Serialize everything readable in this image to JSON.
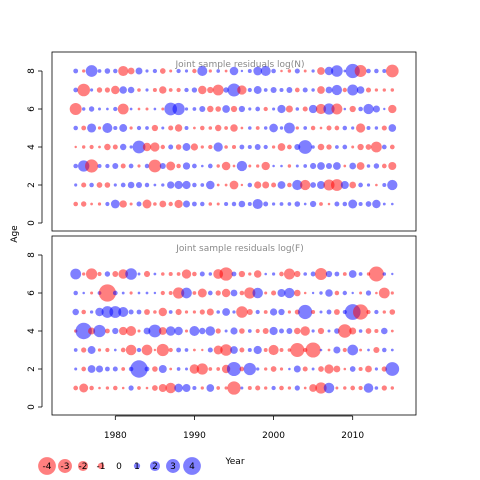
{
  "chart_data": {
    "type": "scatter",
    "subtype": "bubble",
    "colors": {
      "positive": "#0000ff",
      "negative": "#ff0000",
      "alpha": 0.5
    },
    "panels": [
      {
        "title": "Joint sample residuals log(N)",
        "ylim": [
          0,
          8
        ],
        "yticks": [
          "0",
          "2",
          "4",
          "6",
          "8"
        ],
        "ages": [
          1,
          2,
          3,
          4,
          5,
          6,
          7,
          8
        ]
      },
      {
        "title": "Joint sample residuals log(F)",
        "ylim": [
          0,
          8
        ],
        "yticks": [
          "0",
          "2",
          "4",
          "6",
          "8"
        ],
        "ages": [
          1,
          2,
          3,
          4,
          5,
          6,
          7
        ]
      }
    ],
    "ylabel": "Age",
    "xlabel": "Year",
    "xlim": [
      1972,
      2018
    ],
    "years_start": 1975,
    "years_end": 2015,
    "xticks": [
      "1980",
      "1990",
      "2000",
      "2010"
    ],
    "legend": {
      "values": [
        -4,
        -3,
        -2,
        -1,
        0,
        1,
        2,
        3,
        4
      ],
      "labels": [
        "-4",
        "-3",
        "-2",
        "-1",
        "0",
        "1",
        "2",
        "3",
        "4"
      ]
    }
  }
}
